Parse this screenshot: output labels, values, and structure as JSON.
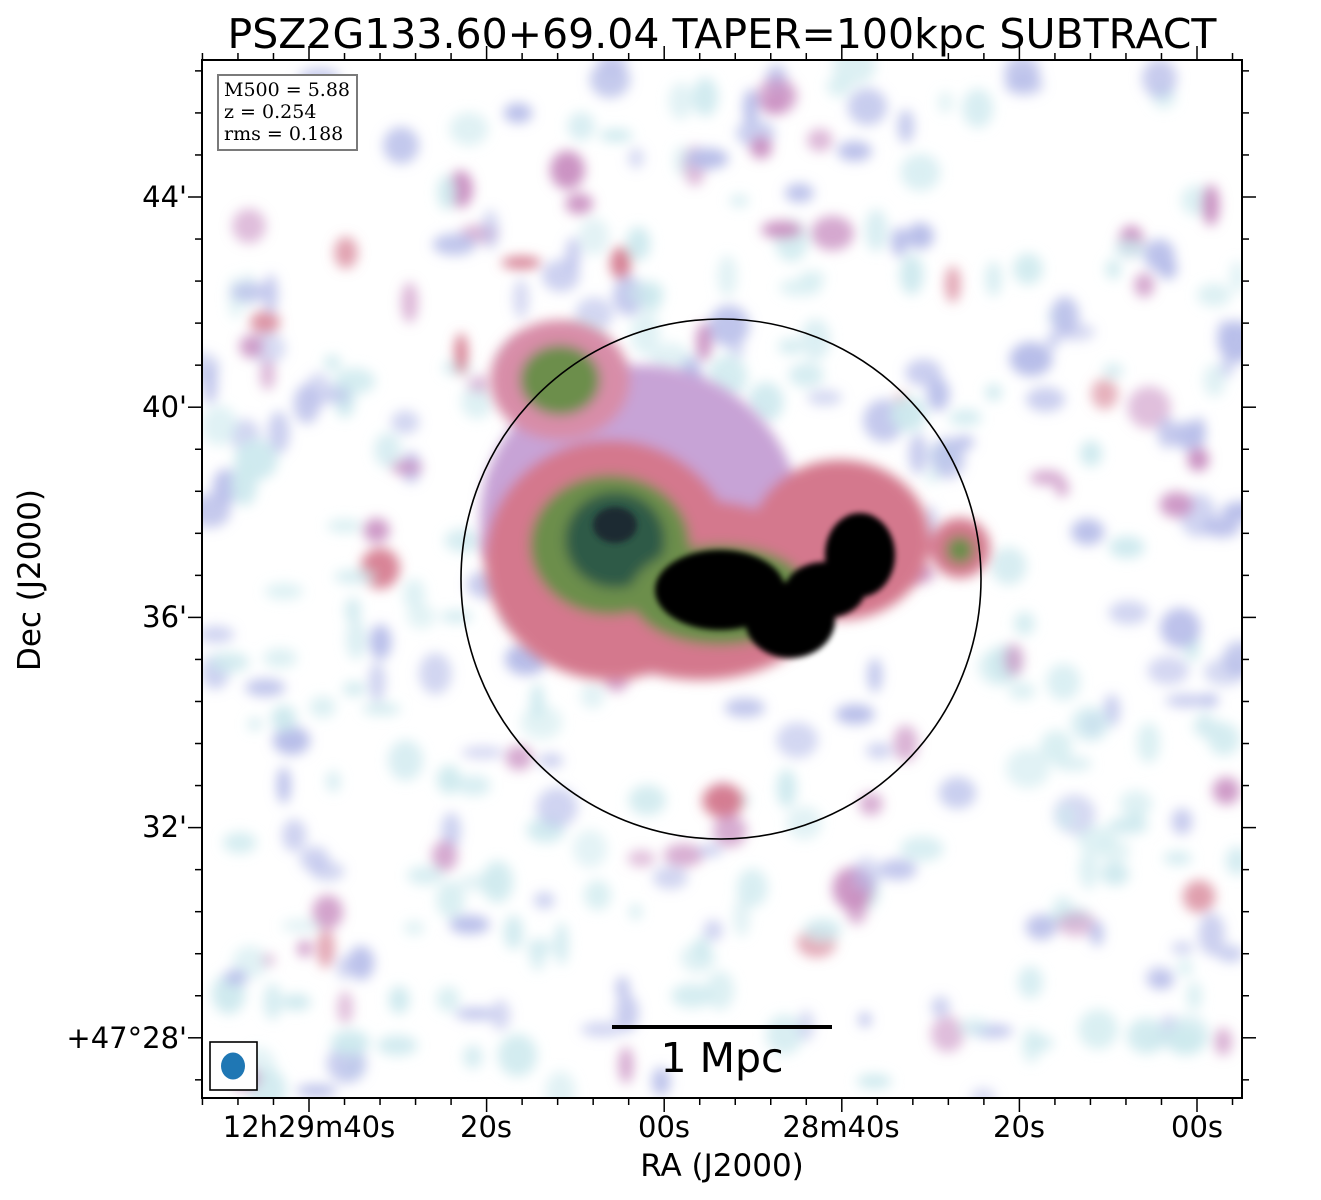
{
  "title": "PSZ2G133.60+69.04 TAPER=100kpc SUBTRACT",
  "axes": {
    "xlabel": "RA (J2000)",
    "ylabel": "Dec (J2000)",
    "xticks": [
      "12h29m40s",
      "20s",
      "00s",
      "28m40s",
      "20s",
      "00s"
    ],
    "yticks": [
      "44'",
      "40'",
      "36'",
      "32'",
      "+47°28'"
    ]
  },
  "info": {
    "m500": "M500 = 5.88",
    "z": "z = 0.254",
    "rms": "rms = 0.188"
  },
  "scalebar": {
    "label": "1 Mpc"
  },
  "beam": {
    "color": "#1f77b4"
  },
  "colormap": {
    "name": "cubehelix-like",
    "stops": [
      "#ffffff",
      "#cde9ee",
      "#b7bde9",
      "#c98fc1",
      "#d4788d",
      "#6c8e4c",
      "#2e5a46",
      "#000000"
    ]
  },
  "image": {
    "description": "radio continuum emission map with circular R500 region"
  }
}
